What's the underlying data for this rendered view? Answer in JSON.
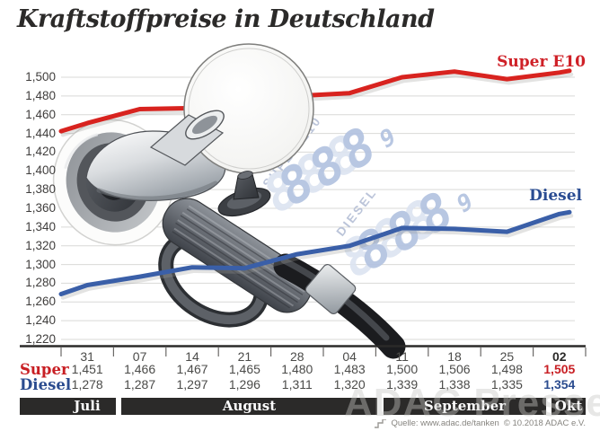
{
  "title": "Kraftstoffpreise in Deutschland",
  "chart_data": {
    "type": "line",
    "title": "Kraftstoffpreise in Deutschland",
    "x_categories": [
      "31",
      "07",
      "14",
      "21",
      "28",
      "04",
      "11",
      "18",
      "25",
      "02"
    ],
    "series": [
      {
        "name": "Super E10",
        "color": "#d8231f",
        "values": [
          1451,
          1466,
          1467,
          1465,
          1480,
          1483,
          1500,
          1506,
          1498,
          1505
        ]
      },
      {
        "name": "Diesel",
        "color": "#3a5fa8",
        "values": [
          1278,
          1287,
          1297,
          1296,
          1311,
          1320,
          1339,
          1338,
          1335,
          1354
        ]
      }
    ],
    "ylim": [
      1220,
      1500
    ],
    "ytick_step": 20,
    "ytick_labels": [
      "1,500",
      "1,480",
      "1,460",
      "1,440",
      "1,420",
      "1,400",
      "1,380",
      "1,360",
      "1,340",
      "1,320",
      "1,300",
      "1,280",
      "1,260",
      "1,240",
      "1,220"
    ],
    "grid": true,
    "legend_position": "line-end-labels-right"
  },
  "table": {
    "row_labels": {
      "super": "Super",
      "diesel": "Diesel"
    },
    "dates": [
      "31",
      "07",
      "14",
      "21",
      "28",
      "04",
      "11",
      "18",
      "25",
      "02"
    ],
    "super_values": [
      "1,451",
      "1,466",
      "1,467",
      "1,465",
      "1,480",
      "1,483",
      "1,500",
      "1,506",
      "1,498",
      "1,505"
    ],
    "diesel_values": [
      "1,278",
      "1,287",
      "1,297",
      "1,296",
      "1,311",
      "1,320",
      "1,339",
      "1,338",
      "1,335",
      "1,354"
    ],
    "months": [
      {
        "label": "Juli",
        "cols": 1
      },
      {
        "label": "August",
        "cols": 5
      },
      {
        "label": "September",
        "cols": 3
      },
      {
        "label": "Okt",
        "cols": 1
      }
    ]
  },
  "line_labels": {
    "super": "Super E10",
    "diesel": "Diesel"
  },
  "watermark": {
    "press_text": "ADAC Presse",
    "super_label": "SUPER E10",
    "diesel_label": "DIESEL",
    "digits": "888",
    "sup_digit": "9"
  },
  "source": {
    "text": "Quelle: www.adac.de/tanken",
    "copyright": "© 10.2018 ADAC e.V."
  },
  "colors": {
    "super_line": "#d8231f",
    "diesel_line": "#3a5fa8",
    "super_text": "#c81e23",
    "diesel_text": "#2b4c8f",
    "axis": "#2b2a29",
    "grid": "#d9d9d7",
    "month_bar_bg": "#2b2a29",
    "month_bar_text": "#ffffff",
    "tick_text": "#3f3d3c",
    "watermark_blue": "#b3c3e0"
  }
}
